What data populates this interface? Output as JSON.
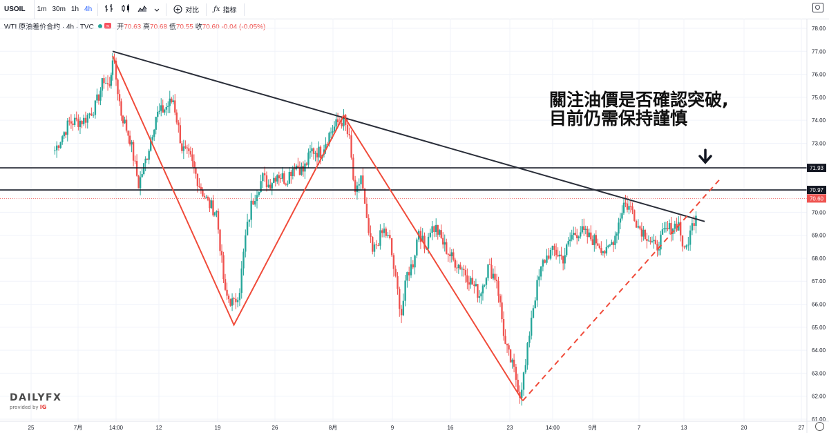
{
  "toolbar": {
    "symbol": "USOIL",
    "intervals": [
      "1m",
      "30m",
      "1h",
      "4h"
    ],
    "active_interval": "4h",
    "compare_label": "对比",
    "indicators_label": "指标"
  },
  "legend": {
    "title": "WTI 原油差价合约 · 4h · TVC",
    "badge": "≈",
    "ohlc": [
      {
        "label": "开",
        "value": "70.63"
      },
      {
        "label": "高",
        "value": "70.68"
      },
      {
        "label": "低",
        "value": "70.55"
      },
      {
        "label": "收",
        "value": "70.60"
      }
    ],
    "change": "-0.04 (-0.05%)"
  },
  "annotation": {
    "line1": "關注油價是否確認突破,",
    "line2": "目前仍需保持謹慎"
  },
  "logo": {
    "main": "DAILYFX",
    "sub": "provided by",
    "brand": "IG"
  },
  "chart_data": {
    "type": "candlestick",
    "symbol": "USOIL",
    "interval": "4h",
    "ylim": [
      61.0,
      78.3
    ],
    "y_ticks": [
      61.0,
      62.0,
      63.0,
      64.0,
      65.0,
      66.0,
      67.0,
      68.0,
      69.0,
      70.0,
      71.0,
      72.0,
      73.0,
      74.0,
      75.0,
      76.0,
      77.0,
      78.0
    ],
    "x_ticks": [
      "25",
      "7月",
      "14:00",
      "12",
      "19",
      "26",
      "8月",
      "9",
      "16",
      "23",
      "14:00",
      "9月",
      "7",
      "13",
      "20",
      "27"
    ],
    "price_labels": [
      {
        "value": "71.93",
        "color": "#131722"
      },
      {
        "value": "70.97",
        "color": "#131722"
      },
      {
        "value": "70.60",
        "color": "#ef5350"
      }
    ],
    "horizontal_lines": [
      71.93,
      70.97
    ],
    "last_price": 70.6,
    "trendline": {
      "from": [
        0,
        77.0
      ],
      "to": [
        205,
        69.6
      ]
    },
    "zigzag": [
      [
        0,
        76.8
      ],
      [
        42,
        65.1
      ],
      [
        80,
        74.2
      ],
      [
        142,
        61.8
      ]
    ],
    "dashed_support": {
      "from": [
        142,
        61.8
      ],
      "to": [
        210,
        71.4
      ]
    },
    "arrow_value": 71.93,
    "up_color": "#26a69a",
    "down_color": "#ef5350",
    "candle_key_points": [
      [
        -20,
        72.7
      ],
      [
        -18,
        73.2
      ],
      [
        -15,
        73.9
      ],
      [
        -10,
        74.0
      ],
      [
        -6,
        74.6
      ],
      [
        -3,
        75.8
      ],
      [
        -1,
        75.4
      ],
      [
        0,
        76.8
      ],
      [
        3,
        74.3
      ],
      [
        6,
        73.2
      ],
      [
        9,
        71.2
      ],
      [
        12,
        72.5
      ],
      [
        15,
        74.2
      ],
      [
        18,
        74.5
      ],
      [
        21,
        74.9
      ],
      [
        24,
        72.8
      ],
      [
        27,
        72.3
      ],
      [
        30,
        71.2
      ],
      [
        33,
        70.4
      ],
      [
        36,
        70.0
      ],
      [
        39,
        66.4
      ],
      [
        42,
        66.0
      ],
      [
        44,
        66.7
      ],
      [
        46,
        68.9
      ],
      [
        48,
        70.3
      ],
      [
        50,
        71.0
      ],
      [
        52,
        71.5
      ],
      [
        54,
        71.2
      ],
      [
        57,
        71.7
      ],
      [
        60,
        71.4
      ],
      [
        63,
        72.1
      ],
      [
        66,
        71.8
      ],
      [
        69,
        72.7
      ],
      [
        72,
        72.6
      ],
      [
        75,
        73.4
      ],
      [
        78,
        73.9
      ],
      [
        80,
        74.0
      ],
      [
        82,
        73.1
      ],
      [
        84,
        70.6
      ],
      [
        86,
        71.6
      ],
      [
        88,
        69.5
      ],
      [
        90,
        68.2
      ],
      [
        92,
        68.8
      ],
      [
        94,
        69.2
      ],
      [
        96,
        68.7
      ],
      [
        98,
        67.0
      ],
      [
        100,
        65.6
      ],
      [
        102,
        67.3
      ],
      [
        104,
        67.8
      ],
      [
        106,
        69.3
      ],
      [
        108,
        68.4
      ],
      [
        110,
        69.3
      ],
      [
        112,
        69.3
      ],
      [
        115,
        68.5
      ],
      [
        118,
        67.9
      ],
      [
        121,
        67.6
      ],
      [
        124,
        67.0
      ],
      [
        127,
        66.4
      ],
      [
        130,
        67.6
      ],
      [
        133,
        67.1
      ],
      [
        136,
        64.2
      ],
      [
        139,
        63.1
      ],
      [
        141,
        62.1
      ],
      [
        143,
        63.3
      ],
      [
        145,
        65.5
      ],
      [
        147,
        66.8
      ],
      [
        149,
        67.8
      ],
      [
        151,
        68.2
      ],
      [
        153,
        68.3
      ],
      [
        156,
        68.0
      ],
      [
        159,
        69.0
      ],
      [
        162,
        69.2
      ],
      [
        165,
        68.9
      ],
      [
        168,
        68.7
      ],
      [
        171,
        68.2
      ],
      [
        174,
        69.0
      ],
      [
        177,
        70.4
      ],
      [
        180,
        70.1
      ],
      [
        182,
        69.4
      ],
      [
        185,
        69.0
      ],
      [
        188,
        68.4
      ],
      [
        191,
        69.1
      ],
      [
        194,
        69.4
      ],
      [
        196,
        69.5
      ],
      [
        198,
        68.2
      ],
      [
        200,
        69.1
      ],
      [
        202,
        70.0
      ],
      [
        204,
        70.5
      ],
      [
        205,
        70.6
      ]
    ]
  }
}
